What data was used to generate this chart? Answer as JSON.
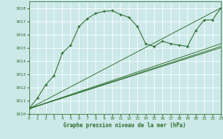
{
  "title": "Graphe pression niveau de la mer (hPa)",
  "bg_color": "#cce8e8",
  "grid_color": "#ffffff",
  "line_color": "#2d6e2d",
  "xlim": [
    0,
    23
  ],
  "ylim": [
    1010,
    1018.5
  ],
  "yticks": [
    1010,
    1011,
    1012,
    1013,
    1014,
    1015,
    1016,
    1017,
    1018
  ],
  "xticks": [
    0,
    1,
    2,
    3,
    4,
    5,
    6,
    7,
    8,
    9,
    10,
    11,
    12,
    13,
    14,
    15,
    16,
    17,
    18,
    19,
    20,
    21,
    22,
    23
  ],
  "series1": {
    "x": [
      0,
      1,
      2,
      3,
      4,
      5,
      6,
      7,
      8,
      9,
      10,
      11,
      12,
      13,
      14,
      15,
      16,
      17,
      18,
      19,
      20,
      21,
      22,
      23
    ],
    "y": [
      1010.4,
      1011.2,
      1012.2,
      1012.9,
      1014.6,
      1015.2,
      1016.6,
      1017.2,
      1017.6,
      1017.75,
      1017.8,
      1017.5,
      1017.3,
      1016.6,
      1015.3,
      1015.1,
      1015.5,
      1015.3,
      1015.2,
      1015.1,
      1016.3,
      1017.1,
      1017.1,
      1018.0
    ]
  },
  "series2": {
    "x": [
      0,
      23
    ],
    "y": [
      1010.4,
      1018.0
    ]
  },
  "series3": {
    "x": [
      0,
      23
    ],
    "y": [
      1010.4,
      1015.3
    ]
  },
  "series4": {
    "x": [
      0,
      23
    ],
    "y": [
      1010.4,
      1015.1
    ]
  },
  "series5": {
    "x": [
      0,
      23
    ],
    "y": [
      1010.4,
      1015.0
    ]
  }
}
